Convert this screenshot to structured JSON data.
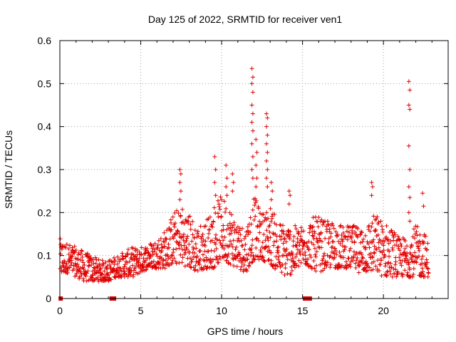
{
  "chart_data": {
    "type": "scatter",
    "title": "Day 125 of 2022, SRMTID for receiver ven1",
    "xlabel": "GPS time / hours",
    "ylabel": "SRMTID / TECUs",
    "xlim": [
      0,
      24
    ],
    "ylim": [
      0,
      0.6
    ],
    "xticks": [
      0,
      5,
      10,
      15,
      20
    ],
    "xtick_labels": [
      "0",
      "5",
      "10",
      "15",
      "20"
    ],
    "yticks": [
      0,
      0.1,
      0.2,
      0.3,
      0.4,
      0.5,
      0.6
    ],
    "ytick_labels": [
      "0",
      "0.1",
      "0.2",
      "0.3",
      "0.4",
      "0.5",
      "0.6"
    ],
    "grid": true,
    "marker": "+",
    "marker_color": "#e00000",
    "series": [
      {
        "name": "SRMTID",
        "envelope": {
          "x": [
            0,
            0.5,
            1,
            1.5,
            2,
            2.5,
            3,
            3.5,
            4,
            4.5,
            5,
            5.5,
            6,
            6.5,
            7,
            7.5,
            8,
            8.5,
            9,
            9.5,
            10,
            10.5,
            11,
            11.5,
            12,
            12.5,
            13,
            13.5,
            14,
            14.5,
            15,
            15.5,
            16,
            16.5,
            17,
            17.5,
            18,
            18.5,
            19,
            19.5,
            20,
            20.5,
            21,
            21.5,
            22,
            22.5,
            22.8
          ],
          "low": [
            0.05,
            0.06,
            0.05,
            0.04,
            0.04,
            0.04,
            0.04,
            0.05,
            0.05,
            0.05,
            0.06,
            0.07,
            0.07,
            0.07,
            0.08,
            0.08,
            0.07,
            0.06,
            0.07,
            0.07,
            0.09,
            0.08,
            0.07,
            0.06,
            0.09,
            0.09,
            0.08,
            0.06,
            0.05,
            0.06,
            0.08,
            0.07,
            0.06,
            0.07,
            0.07,
            0.07,
            0.07,
            0.06,
            0.06,
            0.06,
            0.05,
            0.05,
            0.05,
            0.05,
            0.05,
            0.05,
            0.05
          ],
          "high": [
            0.14,
            0.13,
            0.12,
            0.11,
            0.1,
            0.09,
            0.09,
            0.1,
            0.11,
            0.12,
            0.12,
            0.13,
            0.14,
            0.16,
            0.2,
            0.22,
            0.2,
            0.17,
            0.18,
            0.22,
            0.24,
            0.22,
            0.18,
            0.17,
            0.24,
            0.2,
            0.22,
            0.18,
            0.18,
            0.17,
            0.17,
            0.19,
            0.19,
            0.18,
            0.18,
            0.17,
            0.17,
            0.17,
            0.18,
            0.2,
            0.18,
            0.17,
            0.14,
            0.15,
            0.17,
            0.16,
            0.13
          ]
        },
        "spikes": [
          {
            "x": 7.45,
            "values": [
              0.3,
              0.29,
              0.27,
              0.25,
              0.23
            ]
          },
          {
            "x": 9.6,
            "values": [
              0.33,
              0.3,
              0.27,
              0.24
            ]
          },
          {
            "x": 10.3,
            "values": [
              0.31,
              0.28,
              0.26,
              0.24
            ]
          },
          {
            "x": 10.7,
            "values": [
              0.29,
              0.27,
              0.25
            ]
          },
          {
            "x": 11.9,
            "values": [
              0.535,
              0.515,
              0.5,
              0.48,
              0.45,
              0.43,
              0.41,
              0.39,
              0.36,
              0.33,
              0.3,
              0.28
            ]
          },
          {
            "x": 12.15,
            "values": [
              0.37,
              0.34,
              0.31,
              0.28,
              0.26
            ]
          },
          {
            "x": 12.8,
            "values": [
              0.43,
              0.42,
              0.4,
              0.38,
              0.36,
              0.34,
              0.32,
              0.3,
              0.28,
              0.26
            ]
          },
          {
            "x": 13.1,
            "values": [
              0.27,
              0.25,
              0.23
            ]
          },
          {
            "x": 14.2,
            "values": [
              0.25,
              0.24,
              0.22
            ]
          },
          {
            "x": 19.3,
            "values": [
              0.27,
              0.26,
              0.24
            ]
          },
          {
            "x": 21.6,
            "values": [
              0.505,
              0.485,
              0.45,
              0.44,
              0.355,
              0.3,
              0.26,
              0.235,
              0.2,
              0.18
            ]
          },
          {
            "x": 22.45,
            "values": [
              0.245,
              0.215
            ]
          }
        ],
        "zero_points": {
          "x": [
            0.05,
            3.2,
            3.35,
            15.15,
            15.35,
            15.45
          ]
        }
      }
    ]
  }
}
